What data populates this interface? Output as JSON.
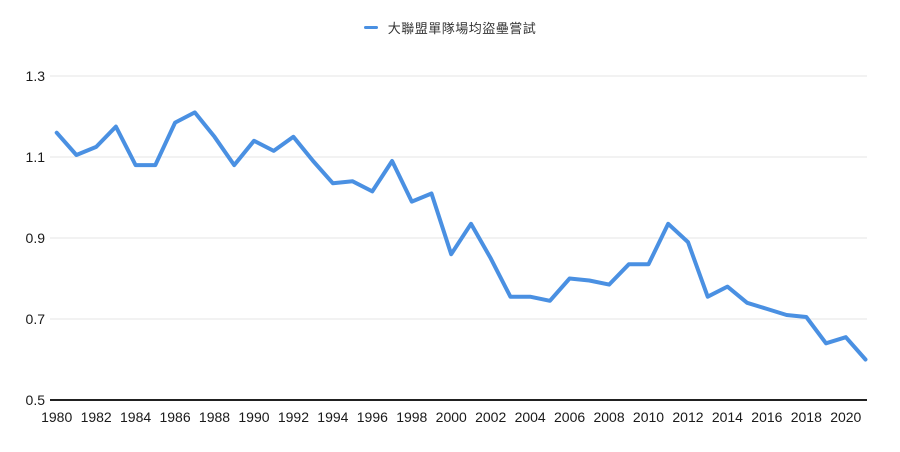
{
  "legend": {
    "label": "大聯盟單隊場均盜壘嘗試",
    "marker_color": "#4a90e2"
  },
  "chart_data": {
    "type": "line",
    "title": "大聯盟單隊場均盜壘嘗試",
    "series_name": "大聯盟單隊場均盜壘嘗試",
    "line_color": "#4a90e2",
    "grid": "horizontal",
    "legend_position": "top",
    "xlabel": "",
    "ylabel": "",
    "ylim": [
      0.5,
      1.3
    ],
    "yticks": [
      0.5,
      0.7,
      0.9,
      1.1,
      1.3
    ],
    "ytick_labels": [
      "0.5",
      "0.7",
      "0.9",
      "1.1",
      "1.3"
    ],
    "xticks": [
      1980,
      1982,
      1984,
      1986,
      1988,
      1990,
      1992,
      1994,
      1996,
      1998,
      2000,
      2002,
      2004,
      2006,
      2008,
      2010,
      2012,
      2014,
      2016,
      2018,
      2020
    ],
    "x": [
      1980,
      1981,
      1982,
      1983,
      1984,
      1985,
      1986,
      1987,
      1988,
      1989,
      1990,
      1991,
      1992,
      1993,
      1994,
      1995,
      1996,
      1997,
      1998,
      1999,
      2000,
      2001,
      2002,
      2003,
      2004,
      2005,
      2006,
      2007,
      2008,
      2009,
      2010,
      2011,
      2012,
      2013,
      2014,
      2015,
      2016,
      2017,
      2018,
      2019,
      2020,
      2021
    ],
    "values": [
      1.16,
      1.105,
      1.125,
      1.175,
      1.08,
      1.08,
      1.185,
      1.21,
      1.15,
      1.08,
      1.14,
      1.115,
      1.15,
      1.09,
      1.035,
      1.04,
      1.015,
      1.09,
      0.99,
      1.01,
      0.86,
      0.935,
      0.85,
      0.755,
      0.755,
      0.745,
      0.8,
      0.795,
      0.785,
      0.835,
      0.835,
      0.935,
      0.89,
      0.755,
      0.78,
      0.74,
      0.725,
      0.71,
      0.705,
      0.64,
      0.655,
      0.6
    ]
  },
  "colors": {
    "gridline": "#e6e6e6",
    "axis_line": "#212121",
    "tick_label": "#1a1a1a"
  }
}
